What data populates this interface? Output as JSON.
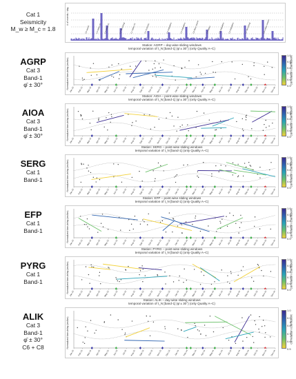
{
  "seismicity": {
    "labels": [
      "Cat 1",
      "Seismicity",
      "M_w ≥ M_c = 1.8"
    ],
    "ylabel": "# of events / day",
    "event_labels": [
      "C6 swarm",
      "C3 Valtos #1",
      "C3 Valtos #2",
      "C7 Mesolongi",
      "C1 Valtos #3",
      "C5 Trichonis",
      "C4 Nafpaktos",
      "C4 Nafpaktos",
      "C8 Mass swarm",
      "C3 Valtos",
      "C4 Nafpaktos",
      "C4 Nafpaktos",
      "C7 Mesolongi",
      "C8 Lefkas swarm"
    ]
  },
  "panels": [
    {
      "id": "agrp",
      "station": "AGRP",
      "lines": [
        "Cat 3",
        "Band-1",
        "φ̄ ± 30°"
      ],
      "title1": "Station: AGRP – day-wise sliding windows",
      "title2": "temporal variation of t_N [band-1] (φ̄ ± 30°) (only Quality A–C)"
    },
    {
      "id": "aioa",
      "station": "AIOA",
      "lines": [
        "Cat 3",
        "Band-1",
        "φ̄ ± 30°"
      ],
      "title1": "Station: AIOA – point-wise sliding windows",
      "title2": "temporal variation of t_N [band-1] (φ̄ ± 30°) (only Quality A–C)"
    },
    {
      "id": "serg",
      "station": "SERG",
      "lines": [
        "Cat 1",
        "Band-1"
      ],
      "title1": "Station: SERG – point-wise sliding windows",
      "title2": "temporal variation of t_N [band-1] (only Quality A–C)"
    },
    {
      "id": "efp",
      "station": "EFP",
      "lines": [
        "Cat 1",
        "Band-1"
      ],
      "title1": "Station: EFP – point-wise sliding windows",
      "title2": "temporal variation of t_N [band-1] (only Quality A–C)"
    },
    {
      "id": "pyrg",
      "station": "PYRG",
      "lines": [
        "Cat 1",
        "Band-1"
      ],
      "title1": "Station: PYRG – point-wise sliding windows",
      "title2": "temporal variation of t_N [band-1] (only Quality A–C)"
    },
    {
      "id": "alik",
      "station": "ALIK",
      "lines": [
        "Cat 3",
        "Band-1",
        "φ̄ ± 30°",
        "C6 + C8"
      ],
      "title1": "Station: ALIK – day-wise sliding windows",
      "title2": "temporal variation of t_N [band-1] (φ̄ ± 30°) (only Quality A–C)"
    }
  ],
  "axis": {
    "ylabel": "Normalized time-delay (ms/km)",
    "months": [
      "Jan-13",
      "Feb-13",
      "Mar-13",
      "Apr-13",
      "May-13",
      "Jun-13",
      "Jul-13",
      "Aug-13",
      "Sep-13",
      "Oct-13",
      "Nov-13",
      "Dec-13",
      "Jan-14",
      "Feb-14",
      "Mar-14",
      "Apr-14",
      "May-14",
      "Jun-14",
      "Jul-14",
      "Aug-14",
      "Sep-14",
      "Oct-14",
      "Nov-14",
      "Dec-14"
    ]
  },
  "colorbar": {
    "label": "correlation coefficient",
    "ticks": [
      "1.0",
      "0.9",
      "0.8",
      "0.7",
      "0.6",
      "0.5"
    ]
  },
  "colors": {
    "purple": "#3b2b91",
    "blue": "#2f64b0",
    "teal": "#29a3b8",
    "green": "#6cc16a",
    "yellow": "#f2d13a",
    "marker_blue": "#3a3aa8",
    "marker_green": "#3fae49",
    "marker_red": "#d9262b"
  }
}
